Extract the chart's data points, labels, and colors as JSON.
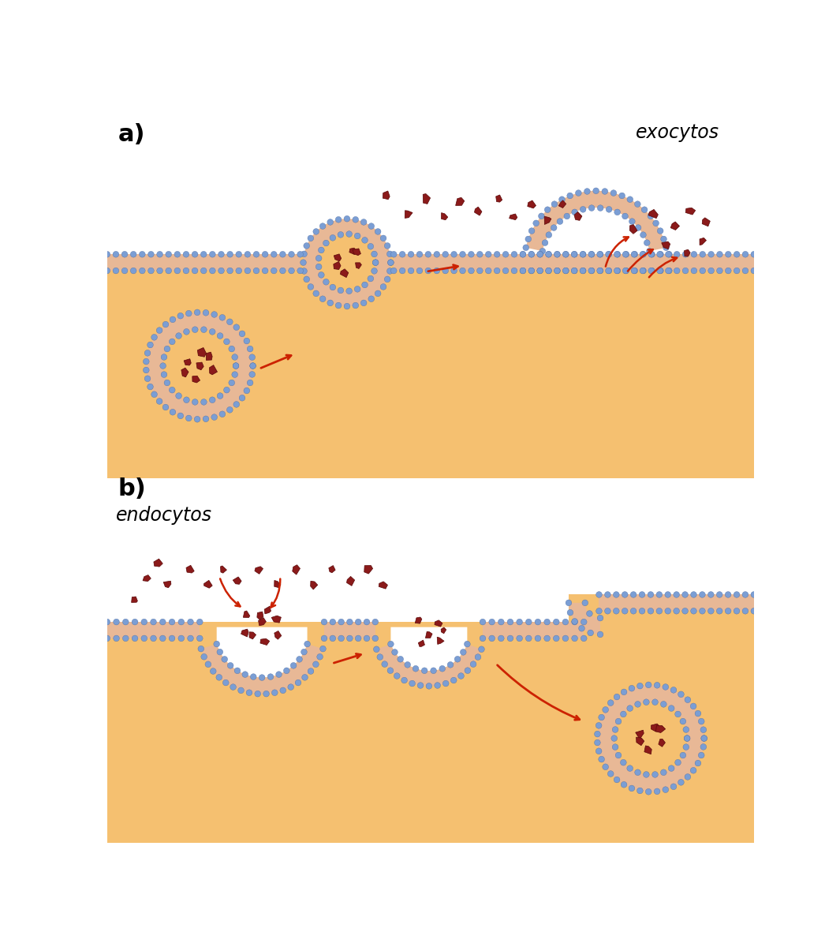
{
  "background_color": "#ffffff",
  "cell_fill": "#f5c070",
  "cell_fill_gradient": "#f8d898",
  "exterior_color": "#f0eeea",
  "membrane_blue": "#7b9ed4",
  "membrane_pink": "#e8b896",
  "molecule_color": "#8b1a1a",
  "molecule_edge": "#5a0808",
  "arrow_color": "#cc2200",
  "label_a": "a)",
  "label_b": "b)",
  "label_exo": "exocytos",
  "label_endo": "endocytos"
}
